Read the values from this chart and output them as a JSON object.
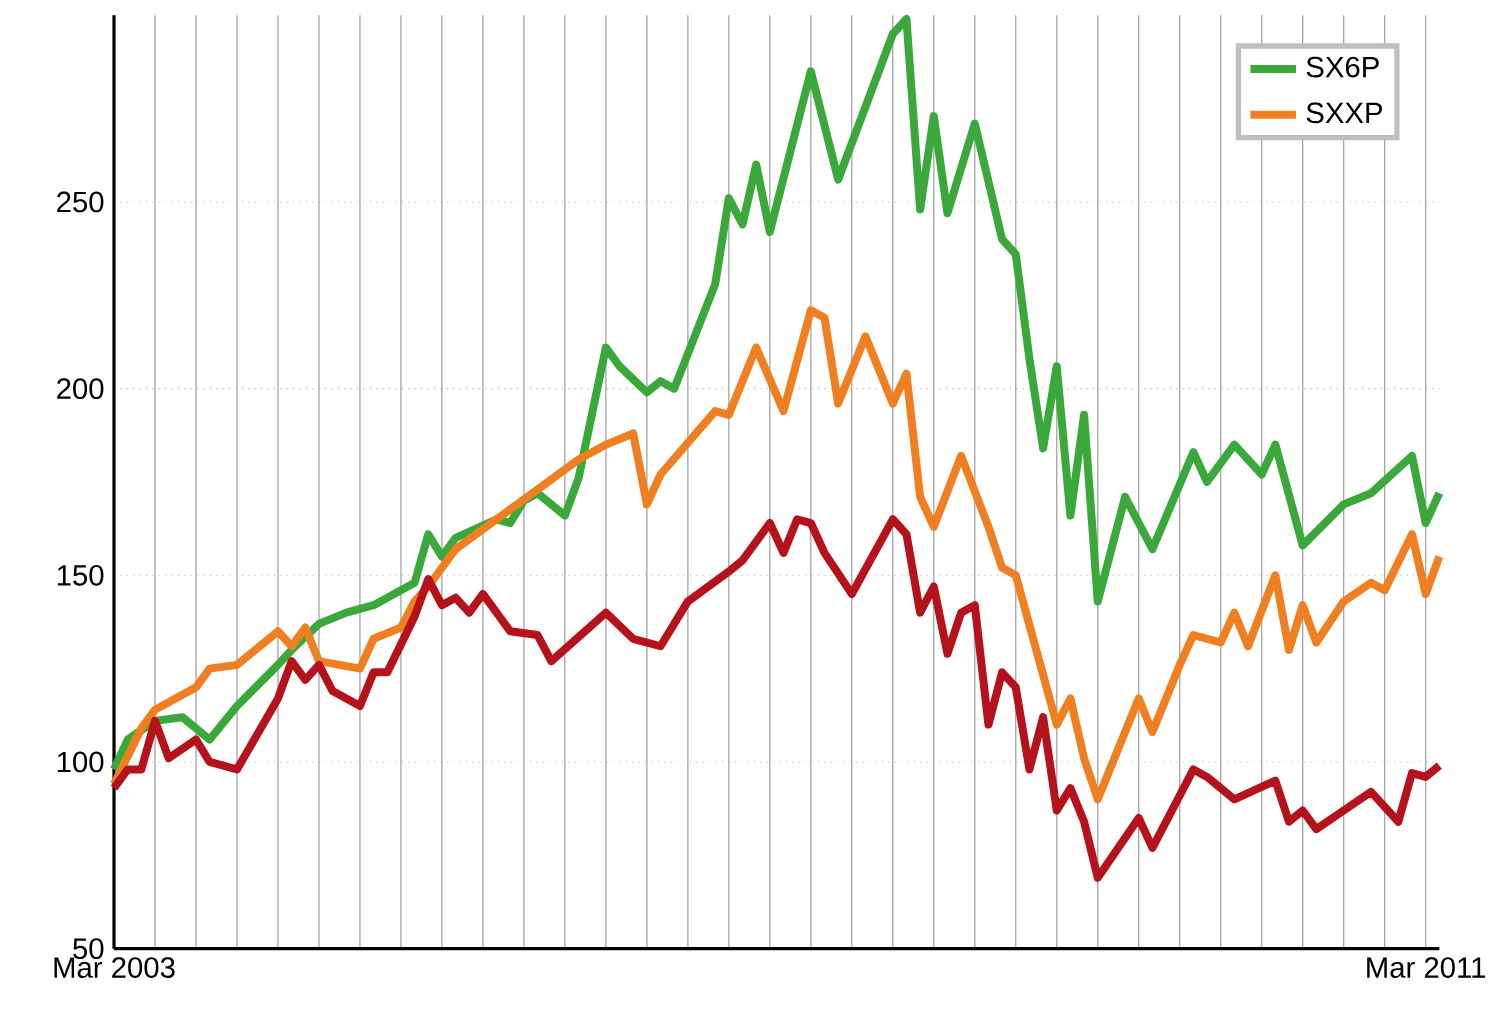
{
  "chart_data": {
    "type": "line",
    "xlim": [
      "2003-03",
      "2011-04"
    ],
    "ylim": [
      50,
      300
    ],
    "yticks": [
      50,
      100,
      150,
      200,
      250
    ],
    "xticks": [
      {
        "value": "2003-03",
        "label": "Mar 2003"
      },
      {
        "value": "2003-06",
        "label": null
      },
      {
        "value": "2003-09",
        "label": null
      },
      {
        "value": "2003-12",
        "label": null
      },
      {
        "value": "2004-03",
        "label": null
      },
      {
        "value": "2004-06",
        "label": null
      },
      {
        "value": "2004-09",
        "label": null
      },
      {
        "value": "2004-12",
        "label": null
      },
      {
        "value": "2005-03",
        "label": null
      },
      {
        "value": "2005-06",
        "label": null
      },
      {
        "value": "2005-09",
        "label": null
      },
      {
        "value": "2005-12",
        "label": null
      },
      {
        "value": "2006-03",
        "label": null
      },
      {
        "value": "2006-06",
        "label": null
      },
      {
        "value": "2006-09",
        "label": null
      },
      {
        "value": "2006-12",
        "label": null
      },
      {
        "value": "2007-03",
        "label": null
      },
      {
        "value": "2007-06",
        "label": null
      },
      {
        "value": "2007-09",
        "label": null
      },
      {
        "value": "2007-12",
        "label": null
      },
      {
        "value": "2008-03",
        "label": null
      },
      {
        "value": "2008-06",
        "label": null
      },
      {
        "value": "2008-09",
        "label": null
      },
      {
        "value": "2008-12",
        "label": null
      },
      {
        "value": "2009-03",
        "label": null
      },
      {
        "value": "2009-06",
        "label": null
      },
      {
        "value": "2009-09",
        "label": null
      },
      {
        "value": "2009-12",
        "label": null
      },
      {
        "value": "2010-03",
        "label": null
      },
      {
        "value": "2010-06",
        "label": null
      },
      {
        "value": "2010-09",
        "label": null
      },
      {
        "value": "2010-12",
        "label": null
      },
      {
        "value": "2011-03",
        "label": "Mar 2011"
      }
    ],
    "grid": true,
    "legend": "top right",
    "series": [
      {
        "name": "SX6P",
        "color": "#3aa83a",
        "x": [
          "2003-03",
          "2003-04",
          "2003-06",
          "2003-08",
          "2003-10",
          "2003-12",
          "2004-03",
          "2004-04",
          "2004-06",
          "2004-08",
          "2004-10",
          "2005-01",
          "2005-02",
          "2005-03",
          "2005-04",
          "2005-07",
          "2005-08",
          "2005-09",
          "2005-10",
          "2005-12",
          "2006-01",
          "2006-03",
          "2006-04",
          "2006-06",
          "2006-07",
          "2006-08",
          "2006-11",
          "2006-12",
          "2007-01",
          "2007-02",
          "2007-03",
          "2007-06",
          "2007-08",
          "2007-12",
          "2008-01",
          "2008-02",
          "2008-03",
          "2008-04",
          "2008-06",
          "2008-08",
          "2008-09",
          "2008-10",
          "2008-11",
          "2008-12",
          "2009-01",
          "2009-02",
          "2009-03",
          "2009-05",
          "2009-07",
          "2009-10",
          "2009-11",
          "2010-01",
          "2010-03",
          "2010-04",
          "2010-06",
          "2010-09",
          "2010-11",
          "2011-02",
          "2011-03",
          "2011-04"
        ],
        "values": [
          98,
          106,
          111,
          112,
          106,
          115,
          126,
          130,
          137,
          140,
          142,
          148,
          161,
          155,
          160,
          165,
          164,
          170,
          172,
          166,
          176,
          211,
          206,
          199,
          202,
          200,
          228,
          251,
          244,
          260,
          242,
          285,
          256,
          295,
          299,
          248,
          273,
          247,
          271,
          240,
          236,
          208,
          184,
          206,
          166,
          193,
          143,
          171,
          157,
          183,
          175,
          185,
          177,
          185,
          158,
          169,
          172,
          182,
          164,
          172
        ]
      },
      {
        "name": "SXXP",
        "color": "#f07f22",
        "x": [
          "2003-03",
          "2003-05",
          "2003-06",
          "2003-09",
          "2003-10",
          "2003-12",
          "2004-03",
          "2004-04",
          "2004-05",
          "2004-06",
          "2004-09",
          "2004-10",
          "2004-12",
          "2005-01",
          "2005-02",
          "2005-04",
          "2005-07",
          "2005-10",
          "2006-01",
          "2006-03",
          "2006-05",
          "2006-06",
          "2006-07",
          "2006-11",
          "2006-12",
          "2007-02",
          "2007-04",
          "2007-06",
          "2007-07",
          "2007-08",
          "2007-10",
          "2007-12",
          "2008-01",
          "2008-02",
          "2008-03",
          "2008-05",
          "2008-07",
          "2008-08",
          "2008-09",
          "2008-12",
          "2009-01",
          "2009-02",
          "2009-03",
          "2009-06",
          "2009-07",
          "2009-09",
          "2009-10",
          "2009-12",
          "2010-01",
          "2010-02",
          "2010-04",
          "2010-05",
          "2010-06",
          "2010-07",
          "2010-09",
          "2010-11",
          "2010-12",
          "2011-02",
          "2011-03",
          "2011-04"
        ],
        "values": [
          94,
          109,
          114,
          120,
          125,
          126,
          135,
          131,
          136,
          127,
          125,
          133,
          136,
          143,
          147,
          157,
          165,
          173,
          181,
          185,
          188,
          169,
          177,
          194,
          193,
          211,
          194,
          221,
          219,
          196,
          214,
          196,
          204,
          171,
          163,
          182,
          163,
          152,
          150,
          110,
          117,
          101,
          90,
          117,
          108,
          126,
          134,
          132,
          140,
          131,
          150,
          130,
          142,
          132,
          143,
          148,
          146,
          161,
          145,
          155
        ]
      },
      {
        "color": "#b5121b",
        "x": [
          "2003-03",
          "2003-04",
          "2003-05",
          "2003-06",
          "2003-07",
          "2003-09",
          "2003-10",
          "2003-12",
          "2004-03",
          "2004-04",
          "2004-05",
          "2004-06",
          "2004-07",
          "2004-09",
          "2004-10",
          "2004-11",
          "2005-01",
          "2005-02",
          "2005-03",
          "2005-04",
          "2005-05",
          "2005-06",
          "2005-08",
          "2005-10",
          "2005-11",
          "2006-03",
          "2006-05",
          "2006-07",
          "2006-09",
          "2006-12",
          "2007-01",
          "2007-03",
          "2007-04",
          "2007-05",
          "2007-06",
          "2007-07",
          "2007-09",
          "2007-12",
          "2008-01",
          "2008-02",
          "2008-03",
          "2008-04",
          "2008-05",
          "2008-06",
          "2008-07",
          "2008-08",
          "2008-09",
          "2008-10",
          "2008-11",
          "2008-12",
          "2009-01",
          "2009-02",
          "2009-03",
          "2009-06",
          "2009-07",
          "2009-10",
          "2009-11",
          "2010-01",
          "2010-04",
          "2010-05",
          "2010-06",
          "2010-07",
          "2010-09",
          "2010-11",
          "2011-01",
          "2011-02",
          "2011-03",
          "2011-04"
        ],
        "values": [
          93,
          98,
          98,
          111,
          101,
          106,
          100,
          98,
          117,
          127,
          122,
          126,
          119,
          115,
          124,
          124,
          139,
          149,
          142,
          144,
          140,
          145,
          135,
          134,
          127,
          140,
          133,
          131,
          143,
          151,
          154,
          164,
          156,
          165,
          164,
          156,
          145,
          165,
          161,
          140,
          147,
          129,
          140,
          142,
          110,
          124,
          120,
          98,
          112,
          87,
          93,
          84,
          69,
          85,
          77,
          98,
          96,
          90,
          95,
          84,
          87,
          82,
          87,
          92,
          84,
          97,
          96,
          99
        ]
      }
    ]
  }
}
